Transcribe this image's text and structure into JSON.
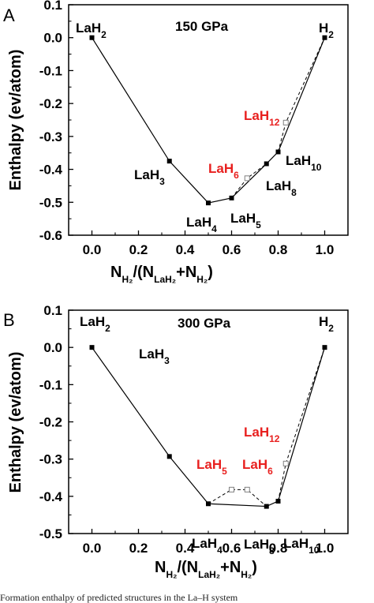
{
  "chart_data": [
    {
      "panel_label": "A",
      "type": "line",
      "title": "150 GPa",
      "ylabel": "Enthalpy (ev/atom)",
      "xlabel": {
        "main": "N",
        "h2": "H₂",
        "den_open": "/(N",
        "lah2": "LaH₂",
        "plus": "+N",
        "close": ")"
      },
      "xlim": [
        -0.1,
        1.1
      ],
      "ylim": [
        -0.6,
        0.1
      ],
      "xticks": [
        "0.0",
        "0.2",
        "0.4",
        "0.6",
        "0.8",
        "1.0"
      ],
      "yticks": [
        "0.1",
        "0.0",
        "-0.1",
        "-0.2",
        "-0.3",
        "-0.4",
        "-0.5",
        "-0.6"
      ],
      "hull": {
        "x": [
          0.0,
          0.333,
          0.5,
          0.6,
          0.75,
          0.8,
          1.0
        ],
        "y": [
          0.0,
          -0.375,
          -0.502,
          -0.487,
          -0.383,
          -0.347,
          0.0
        ]
      },
      "metastable": {
        "x": [
          0.667,
          0.833
        ],
        "y": [
          -0.427,
          -0.258
        ]
      },
      "labels": [
        {
          "base": "LaH",
          "sub": "2",
          "color": "black"
        },
        {
          "base": "H",
          "sub": "2",
          "color": "black"
        },
        {
          "base": "LaH",
          "sub": "3",
          "color": "black"
        },
        {
          "base": "LaH",
          "sub": "4",
          "color": "black"
        },
        {
          "base": "LaH",
          "sub": "5",
          "color": "black"
        },
        {
          "base": "LaH",
          "sub": "6",
          "color": "red"
        },
        {
          "base": "LaH",
          "sub": "8",
          "color": "black"
        },
        {
          "base": "LaH",
          "sub": "10",
          "color": "black"
        },
        {
          "base": "LaH",
          "sub": "12",
          "color": "red"
        }
      ]
    },
    {
      "panel_label": "B",
      "type": "line",
      "title": "300 GPa",
      "ylabel": "Enthalpy (ev/atom)",
      "xlabel": {
        "main": "N",
        "h2": "H₂",
        "den_open": "/(N",
        "lah2": "LaH₂",
        "plus": "+N",
        "close": ")"
      },
      "xlim": [
        -0.1,
        1.1
      ],
      "ylim": [
        -0.5,
        0.1
      ],
      "xticks": [
        "0.0",
        "0.2",
        "0.4",
        "0.6",
        "0.8",
        "1.0"
      ],
      "yticks": [
        "0.1",
        "0.0",
        "-0.1",
        "-0.2",
        "-0.3",
        "-0.4",
        "-0.5"
      ],
      "hull": {
        "x": [
          0.0,
          0.333,
          0.5,
          0.75,
          0.8,
          1.0
        ],
        "y": [
          0.0,
          -0.293,
          -0.42,
          -0.427,
          -0.413,
          0.0
        ]
      },
      "metastable": {
        "x": [
          0.6,
          0.667,
          0.833
        ],
        "y": [
          -0.382,
          -0.382,
          -0.312
        ]
      },
      "labels": [
        {
          "base": "LaH",
          "sub": "2",
          "color": "black"
        },
        {
          "base": "H",
          "sub": "2",
          "color": "black"
        },
        {
          "base": "LaH",
          "sub": "3",
          "color": "black"
        },
        {
          "base": "LaH",
          "sub": "4",
          "color": "black"
        },
        {
          "base": "LaH",
          "sub": "5",
          "color": "red"
        },
        {
          "base": "LaH",
          "sub": "6",
          "color": "red"
        },
        {
          "base": "LaH",
          "sub": "8",
          "color": "black"
        },
        {
          "base": "LaH",
          "sub": "10",
          "color": "black"
        },
        {
          "base": "LaH",
          "sub": "12",
          "color": "red"
        }
      ]
    }
  ],
  "colors": {
    "axis": "#000000",
    "red_label": "#e8201f",
    "metastable_marker": "#808080"
  },
  "caption": "Formation enthalpy of predicted structures in the La–H system"
}
